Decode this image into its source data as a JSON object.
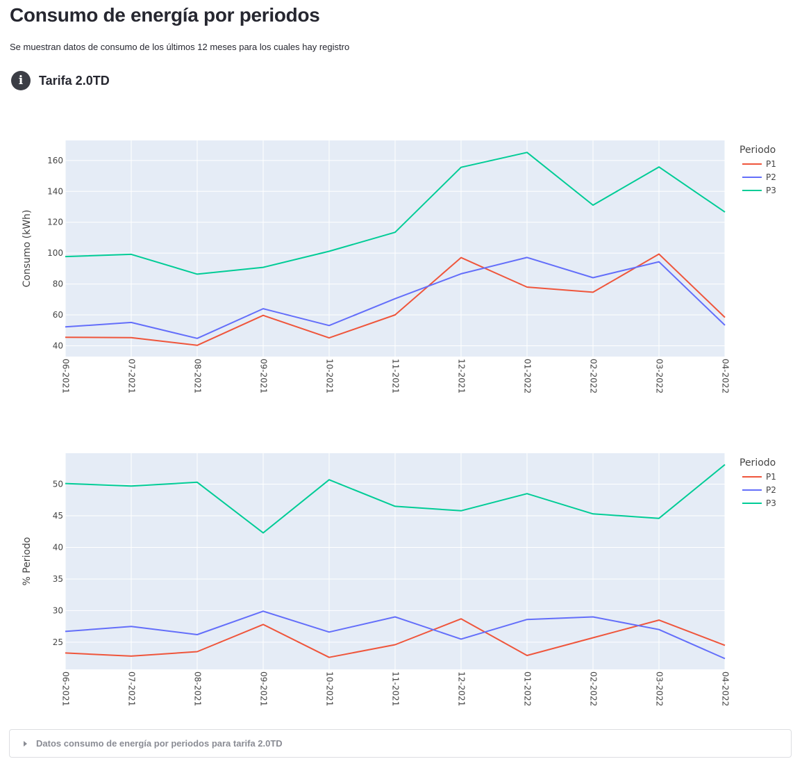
{
  "header": {
    "title": "Consumo de energía por periodos",
    "subtitle": "Se muestran datos de consumo de los últimos 12 meses para los cuales hay registro"
  },
  "section": {
    "icon": "info-icon",
    "title": "Tarifa 2.0TD"
  },
  "colors": {
    "P1": "#EF553B",
    "P2": "#636EFA",
    "P3": "#00CC96",
    "plot_bg": "#E5ECF6"
  },
  "chart_data": [
    {
      "type": "line",
      "ylabel": "Consumo (kWh)",
      "xlabel": "",
      "x": [
        "06-2021",
        "07-2021",
        "08-2021",
        "09-2021",
        "10-2021",
        "11-2021",
        "12-2021",
        "01-2022",
        "02-2022",
        "03-2022",
        "04-2022"
      ],
      "ylim": [
        33,
        173
      ],
      "yticks": [
        40,
        60,
        80,
        100,
        120,
        140,
        160
      ],
      "grid": true,
      "legend_title": "Periodo",
      "legend_position": "top-right",
      "series": [
        {
          "name": "P1",
          "values": [
            45.5,
            45.3,
            40.3,
            59.7,
            45.1,
            60.0,
            97.1,
            78.0,
            74.7,
            99.4,
            58.4
          ]
        },
        {
          "name": "P2",
          "values": [
            52.2,
            55.1,
            44.8,
            64.0,
            53.1,
            70.5,
            86.6,
            97.2,
            84.1,
            94.4,
            53.3
          ]
        },
        {
          "name": "P3",
          "values": [
            97.8,
            99.2,
            86.4,
            90.8,
            101.2,
            113.5,
            155.6,
            165.2,
            131.1,
            155.8,
            126.6
          ]
        }
      ]
    },
    {
      "type": "line",
      "ylabel": "% Periodo",
      "xlabel": "",
      "x": [
        "06-2021",
        "07-2021",
        "08-2021",
        "09-2021",
        "10-2021",
        "11-2021",
        "12-2021",
        "01-2022",
        "02-2022",
        "03-2022",
        "04-2022"
      ],
      "ylim": [
        20.7,
        54.9
      ],
      "yticks": [
        25,
        30,
        35,
        40,
        45,
        50
      ],
      "grid": true,
      "legend_title": "Periodo",
      "legend_position": "top-right",
      "series": [
        {
          "name": "P1",
          "values": [
            23.3,
            22.8,
            23.5,
            27.8,
            22.6,
            24.6,
            28.7,
            22.9,
            25.7,
            28.5,
            24.5
          ]
        },
        {
          "name": "P2",
          "values": [
            26.7,
            27.5,
            26.2,
            29.9,
            26.6,
            29.0,
            25.5,
            28.6,
            29.0,
            27.0,
            22.4
          ]
        },
        {
          "name": "P3",
          "values": [
            50.1,
            49.7,
            50.3,
            42.3,
            50.7,
            46.5,
            45.8,
            48.5,
            45.3,
            44.6,
            53.1
          ]
        }
      ]
    }
  ],
  "expander": {
    "label": "Datos consumo de energía por periodos para tarifa 2.0TD"
  }
}
